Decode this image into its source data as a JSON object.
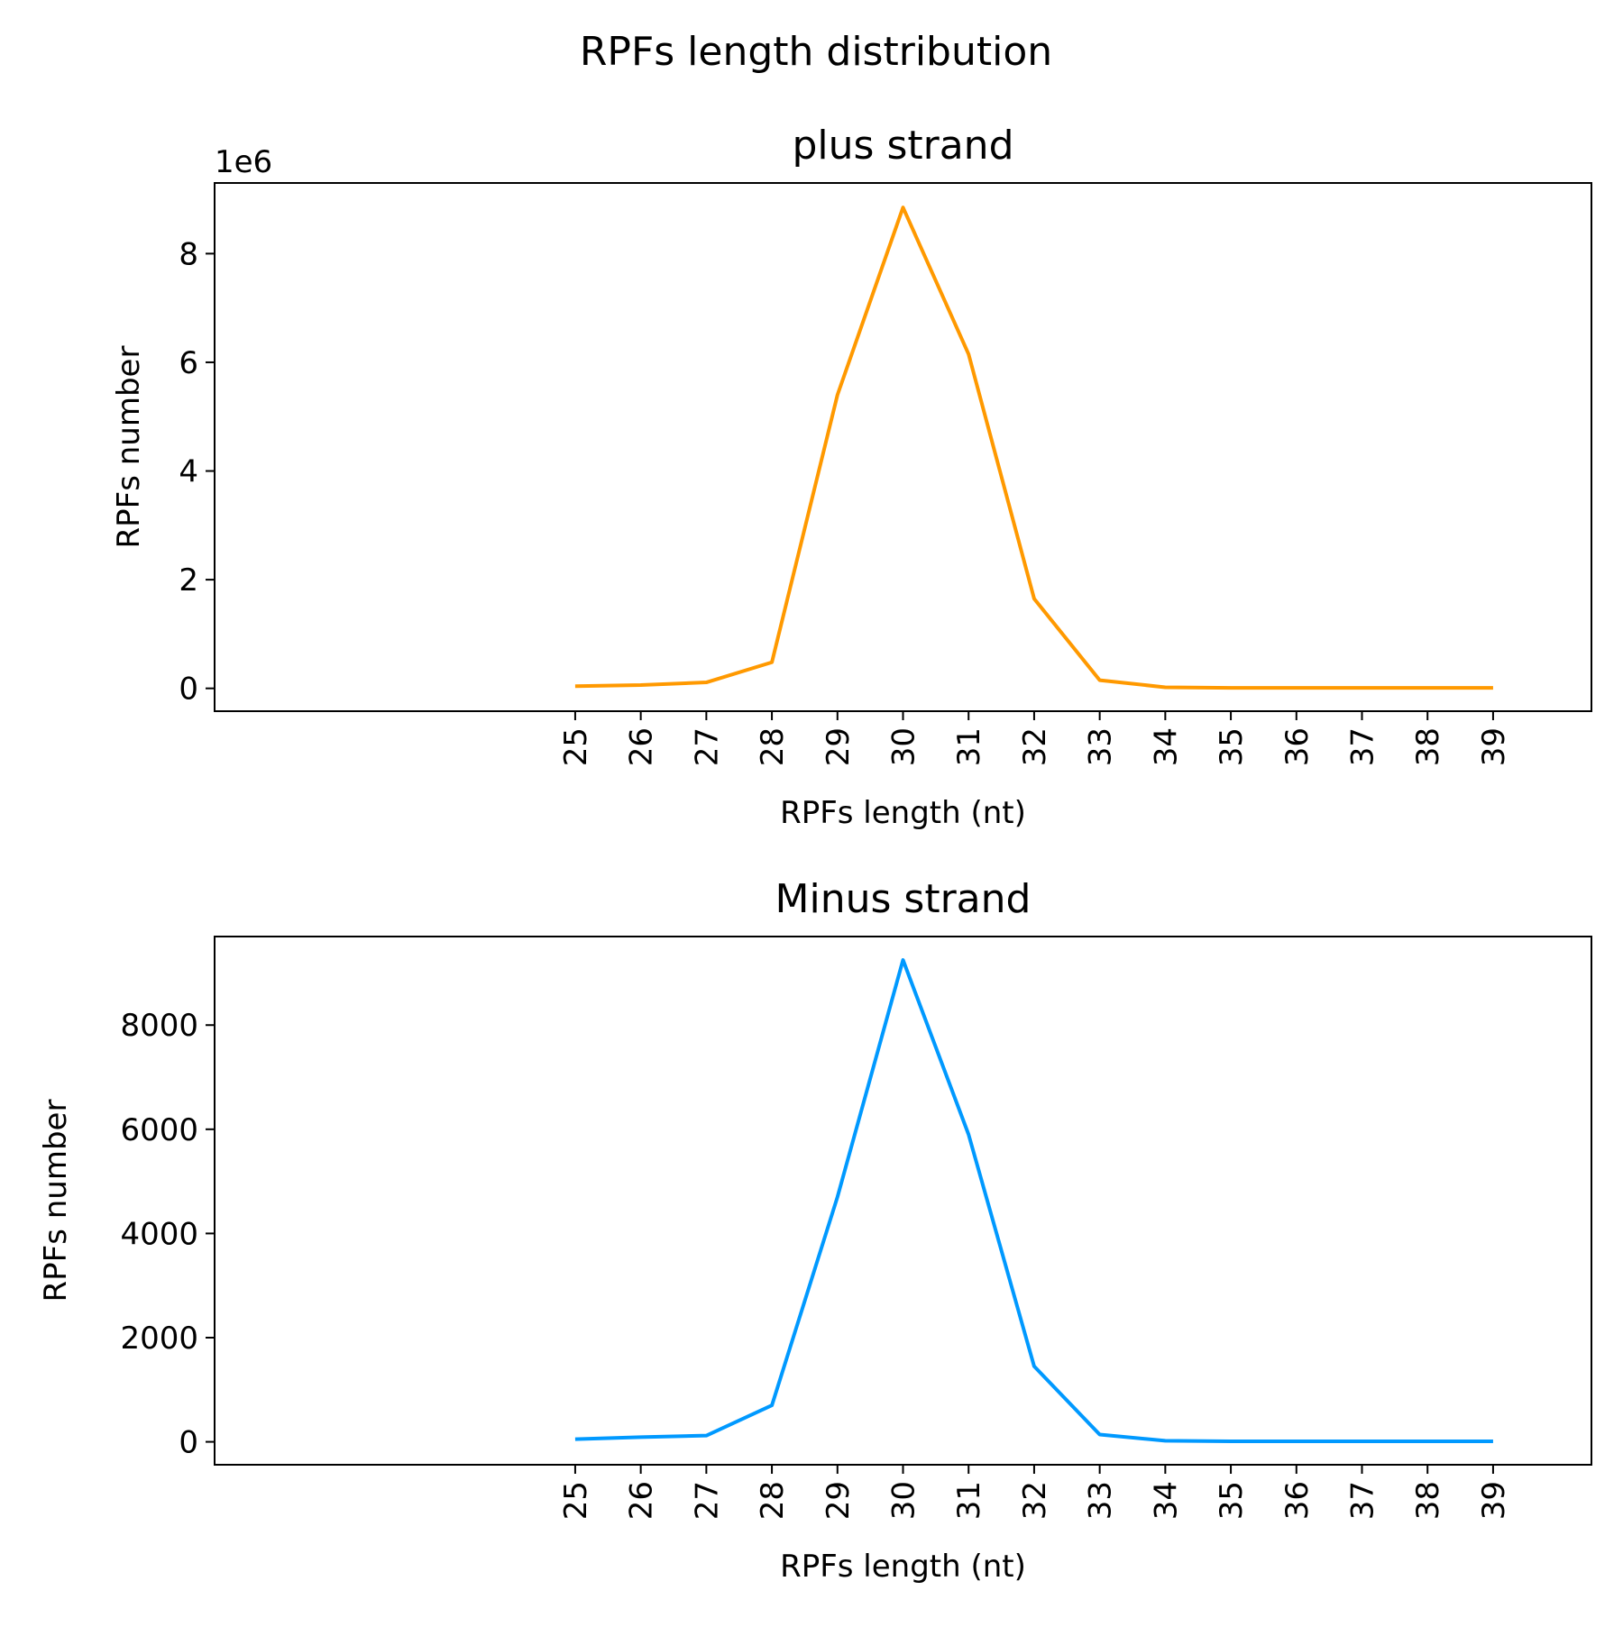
{
  "figure": {
    "title": "RPFs length distribution"
  },
  "chart_data": [
    {
      "type": "line",
      "title": "plus strand",
      "xlabel": "RPFs length (nt)",
      "ylabel": "RPFs number",
      "y_offset_label": "1e6",
      "x": [
        25,
        26,
        27,
        28,
        29,
        30,
        31,
        32,
        33,
        34,
        35,
        36,
        37,
        38,
        39
      ],
      "x_tick_labels": [
        "25",
        "26",
        "27",
        "28",
        "29",
        "30",
        "31",
        "32",
        "33",
        "34",
        "35",
        "36",
        "37",
        "38",
        "39"
      ],
      "series": [
        {
          "color": "#FF9900",
          "values": [
            40000,
            60000,
            110000,
            480000,
            5400000,
            8850000,
            6150000,
            1650000,
            150000,
            20000,
            10000,
            10000,
            10000,
            10000,
            10000
          ]
        }
      ],
      "xlim": [
        19.5,
        40.5
      ],
      "ylim": [
        -420000,
        9300000
      ],
      "y_ticks": [
        0,
        2000000,
        4000000,
        6000000,
        8000000
      ],
      "y_tick_labels": [
        "0",
        "2",
        "4",
        "6",
        "8"
      ],
      "grid": false,
      "legend": "none"
    },
    {
      "type": "line",
      "title": "Minus strand",
      "xlabel": "RPFs length (nt)",
      "ylabel": "RPFs number",
      "x": [
        25,
        26,
        27,
        28,
        29,
        30,
        31,
        32,
        33,
        34,
        35,
        36,
        37,
        38,
        39
      ],
      "x_tick_labels": [
        "25",
        "26",
        "27",
        "28",
        "29",
        "30",
        "31",
        "32",
        "33",
        "34",
        "35",
        "36",
        "37",
        "38",
        "39"
      ],
      "series": [
        {
          "color": "#0099FF",
          "values": [
            50,
            90,
            120,
            700,
            4700,
            9250,
            5900,
            1450,
            140,
            20,
            10,
            10,
            10,
            10,
            10
          ]
        }
      ],
      "xlim": [
        19.5,
        40.5
      ],
      "ylim": [
        -440,
        9700
      ],
      "y_ticks": [
        0,
        2000,
        4000,
        6000,
        8000
      ],
      "y_tick_labels": [
        "0",
        "2000",
        "4000",
        "6000",
        "8000"
      ],
      "grid": false,
      "legend": "none"
    }
  ]
}
